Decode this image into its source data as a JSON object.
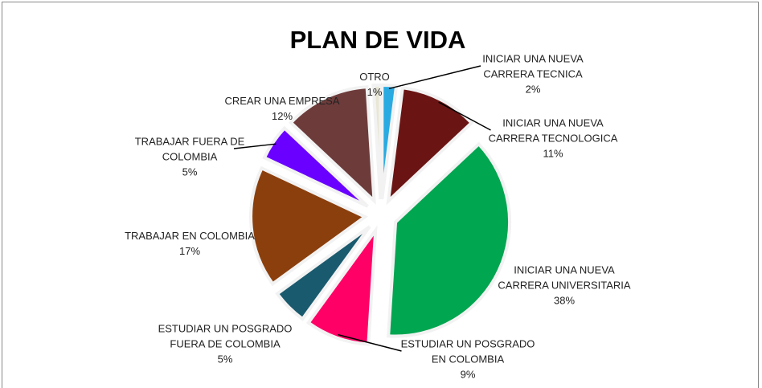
{
  "chart_data": {
    "type": "pie",
    "title": "PLAN DE VIDA",
    "categories": [
      "INICIAR UNA NUEVA CARRERA TECNICA",
      "INICIAR UNA NUEVA CARRERA TECNOLOGICA",
      "INICIAR UNA NUEVA CARRERA UNIVERSITARIA",
      "ESTUDIAR UN POSGRADO EN COLOMBIA",
      "ESTUDIAR UN POSGRADO FUERA DE COLOMBIA",
      "TRABAJAR EN COLOMBIA",
      "TRABAJAR FUERA DE COLOMBIA",
      "CREAR UNA EMPRESA",
      "OTRO"
    ],
    "values": [
      2,
      11,
      38,
      9,
      5,
      17,
      5,
      12,
      1
    ],
    "value_labels": [
      "2%",
      "11%",
      "38%",
      "9%",
      "5%",
      "17%",
      "5%",
      "12%",
      "1%"
    ],
    "colors": [
      "#29abe2",
      "#6b1414",
      "#00a650",
      "#ff0066",
      "#1a5a6e",
      "#8b3f0c",
      "#6a00ff",
      "#6e3b3b",
      "#e8e6d4"
    ]
  }
}
